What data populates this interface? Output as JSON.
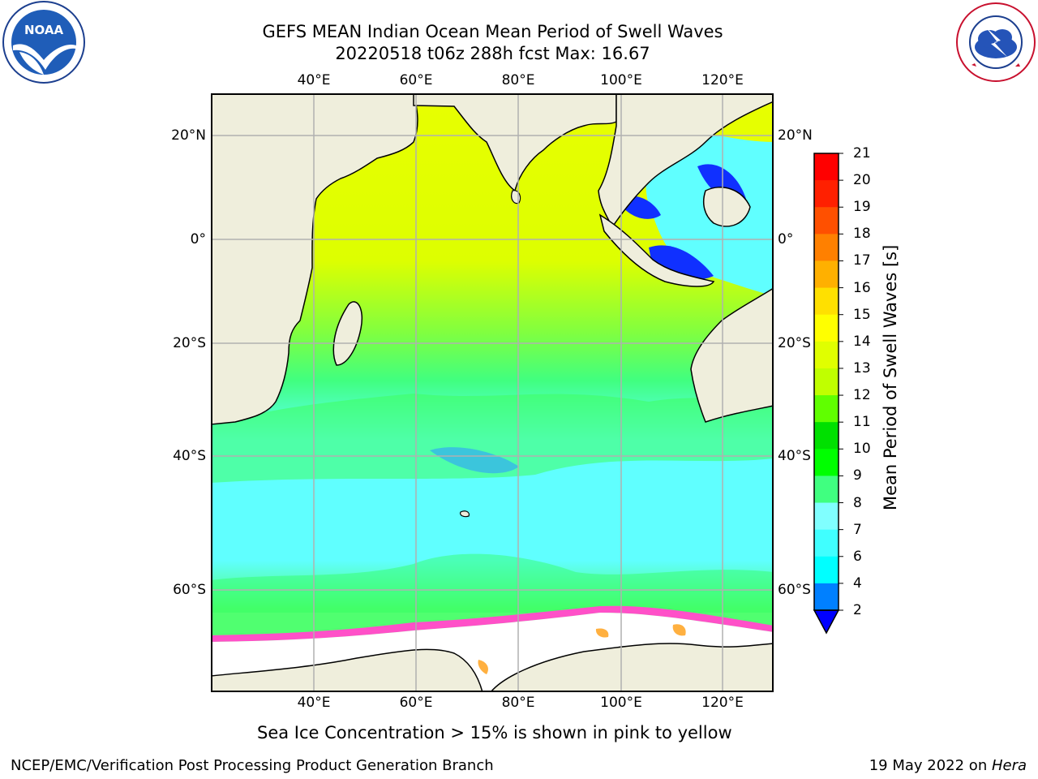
{
  "title": {
    "line1": "GEFS MEAN Indian Ocean Mean Period of Swell Waves",
    "line2": "20220518 t06z 288h fcst   Max: 16.67"
  },
  "logos": {
    "left_text": "NOAA",
    "right_ring_text": "NATIONAL WEATHER SERVICE"
  },
  "map": {
    "lon_ticks": [
      "40°E",
      "60°E",
      "80°E",
      "100°E",
      "120°E"
    ],
    "lat_ticks": [
      "20°N",
      "0°",
      "20°S",
      "40°S",
      "60°S"
    ],
    "colors": {
      "land": "#efeedc",
      "ice": "#ffffff",
      "grid": "#b0b0b0"
    }
  },
  "colorbar": {
    "label": "Mean Period of Swell Waves [s]",
    "ticks": [
      "2",
      "4",
      "6",
      "7",
      "8",
      "9",
      "10",
      "11",
      "12",
      "13",
      "14",
      "15",
      "16",
      "17",
      "18",
      "19",
      "20",
      "21"
    ],
    "colors": [
      "#0000ff",
      "#0080ff",
      "#00ffff",
      "#40ffff",
      "#80ffff",
      "#40ff80",
      "#00ff00",
      "#00e000",
      "#60ff00",
      "#c0ff00",
      "#e0ff00",
      "#ffff00",
      "#ffe000",
      "#ffb000",
      "#ff8000",
      "#ff5000",
      "#ff2000",
      "#ff0000"
    ]
  },
  "footnote": "Sea Ice Concentration > 15% is shown in pink to yellow",
  "footer": {
    "left": "NCEP/EMC/Verification Post Processing Product Generation Branch",
    "right_prefix": "19 May 2022 on ",
    "right_machine": "Hera"
  }
}
